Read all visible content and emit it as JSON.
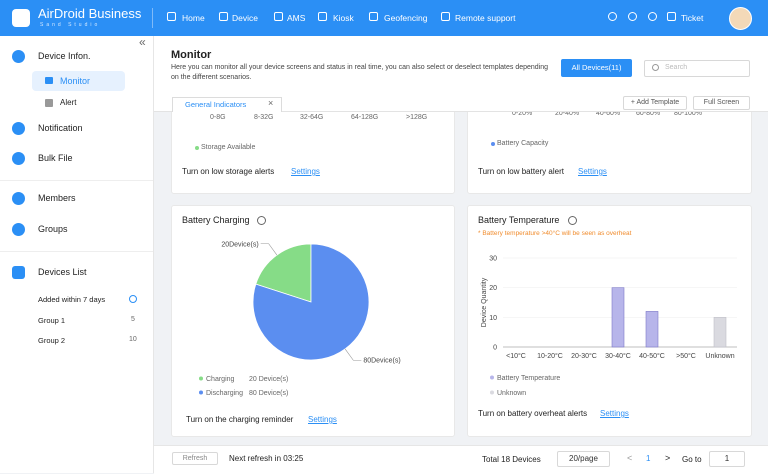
{
  "header": {
    "brand": "AirDroid Business",
    "brand_sub": "Sand Studio",
    "nav": [
      "Home",
      "Device",
      "AMS",
      "Kiosk",
      "Geofencing",
      "Remote support"
    ],
    "ticket": "Ticket"
  },
  "sidebar": {
    "collapse": "«",
    "items": [
      "Device Infon.",
      "Monitor",
      "Alert",
      "Notification",
      "Bulk File",
      "Members",
      "Groups",
      "Devices List"
    ],
    "groups": [
      {
        "name": "Added within 7 days"
      },
      {
        "name": "Group 1",
        "count": "5"
      },
      {
        "name": "Group 2",
        "count": "10"
      }
    ]
  },
  "page": {
    "title": "Monitor",
    "description": "Here you can monitor all your device screens and status in real time, you can also select or deselect templates depending on the different scenarios.",
    "device_filter": "All Devices(11)",
    "search_placeholder": "Search",
    "tab": "General Indicators",
    "tab_close": "×",
    "add_template": "+ Add Template",
    "full_screen": "Full Screen"
  },
  "storage_card": {
    "categories": [
      "0-8G",
      "8-32G",
      "32-64G",
      "64-128G",
      ">128G"
    ],
    "legend": "Storage Available",
    "alert_text": "Turn on low storage alerts",
    "settings": "Settings"
  },
  "battery_capacity_card": {
    "categories": [
      "0-20%",
      "20-40%",
      "40-60%",
      "60-80%",
      "80-100%"
    ],
    "legend": "Battery Capacity",
    "alert_text": "Turn on low battery alert",
    "settings": "Settings"
  },
  "chart_data": [
    {
      "type": "pie",
      "title": "Battery Charging",
      "categories": [
        "Charging",
        "Discharging"
      ],
      "values": [
        20,
        80
      ],
      "value_labels": [
        "20Device(s)",
        "80Device(s)"
      ],
      "legend_value_labels": [
        "20 Device(s)",
        "80 Device(s)"
      ],
      "colors": [
        "#86dc87",
        "#5b8ef0"
      ],
      "alert_text": "Turn on the charging reminder",
      "settings": "Settings"
    },
    {
      "type": "bar",
      "title": "Battery Temperature",
      "note": "* Battery temperature >40°C will be seen as overheat",
      "y_label": "Device Quantity",
      "categories": [
        "<10°C",
        "10-20°C",
        "20-30°C",
        "30-40°C",
        "40-50°C",
        ">50°C",
        "Unknown"
      ],
      "series": [
        {
          "name": "Battery Temperature",
          "color": "#b7b5ea",
          "values": [
            0,
            0,
            0,
            20,
            12,
            0,
            null
          ]
        },
        {
          "name": "Unknown",
          "color": "#dadae0",
          "values": [
            null,
            null,
            null,
            null,
            null,
            null,
            10
          ]
        }
      ],
      "ylim": [
        0,
        30
      ],
      "yticks": [
        0,
        10,
        20,
        30
      ],
      "grid": true,
      "alert_text": "Turn on battery overheat alerts",
      "settings": "Settings"
    }
  ],
  "footer": {
    "refresh": "Refresh",
    "next_refresh": "Next refresh in 03:25",
    "total": "Total 18 Devices",
    "page_size": "20/page",
    "prev": "<",
    "current_page": "1",
    "next": ">",
    "goto": "Go to",
    "goto_value": "1"
  }
}
